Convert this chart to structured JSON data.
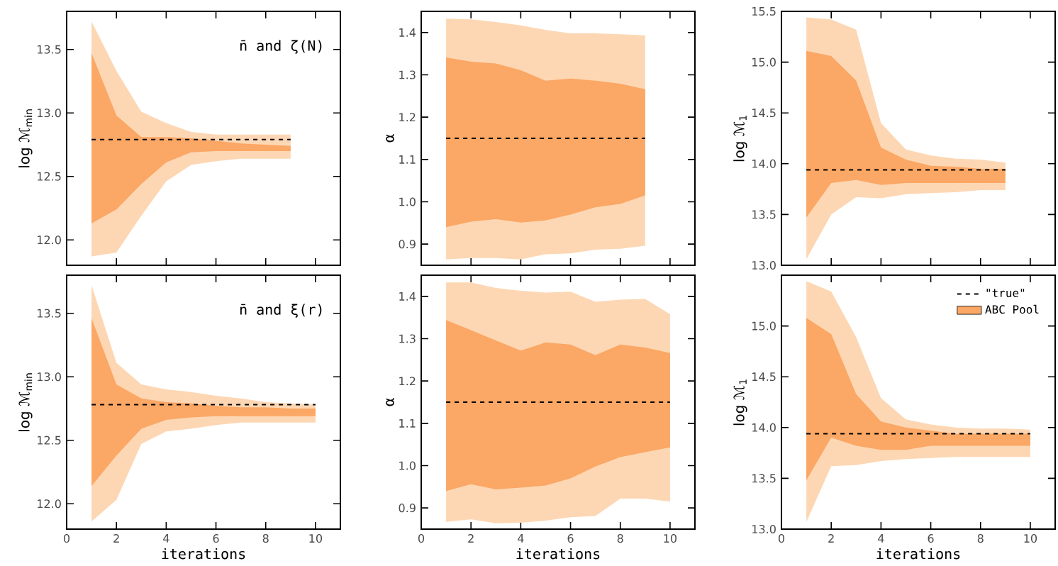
{
  "chart_data": [
    {
      "type": "line",
      "ylabel": "log ℳ$_{min}$",
      "annotations": [
        "n̄ and ζ(N)"
      ],
      "tick_labels": "y",
      "xlim": [
        0,
        11
      ],
      "xticks": [
        0,
        2,
        4,
        6,
        8,
        10
      ],
      "ylim": [
        11.8,
        13.8
      ],
      "yticks": [
        {
          "value": 12,
          "label": "12.0"
        },
        12.5,
        {
          "value": 13,
          "label": "13.0"
        },
        13.5
      ],
      "series": [
        {
          "line_style": "dashed",
          "color": "#000000",
          "x": [
            1,
            9
          ],
          "values": [
            12.79,
            12.79
          ]
        },
        {
          "color": "#fdd7b3",
          "x": [
            1,
            2,
            3,
            4,
            5,
            6,
            7,
            8,
            9
          ],
          "values": [
            null,
            null,
            null,
            null,
            null,
            null,
            null,
            null,
            null
          ],
          "upper": [
            13.72,
            13.33,
            13.01,
            12.92,
            12.85,
            12.83,
            12.83,
            12.83,
            12.83
          ],
          "lower": [
            11.87,
            11.9,
            12.19,
            12.46,
            12.59,
            12.62,
            12.64,
            12.64,
            12.64
          ]
        },
        {
          "color": "#fba765",
          "x": [
            1,
            2,
            3,
            4,
            5,
            6,
            7,
            8,
            9
          ],
          "values": [
            null,
            null,
            null,
            null,
            null,
            null,
            null,
            null,
            null
          ],
          "upper": [
            13.47,
            12.98,
            12.81,
            12.81,
            12.8,
            12.78,
            12.76,
            12.75,
            12.74
          ],
          "lower": [
            12.13,
            12.24,
            12.44,
            12.61,
            12.69,
            12.7,
            12.7,
            12.7,
            12.7
          ]
        }
      ]
    },
    {
      "type": "line",
      "ylabel": "α",
      "tick_labels": "y",
      "xlim": [
        0,
        11
      ],
      "xticks": [
        0,
        2,
        4,
        6,
        8,
        10
      ],
      "ylim": [
        0.85,
        1.45
      ],
      "yticks": [
        0.9,
        {
          "value": 1,
          "label": "1.0"
        },
        1.1,
        1.2,
        1.3,
        1.4
      ],
      "series": [
        {
          "line_style": "dashed",
          "color": "#000000",
          "x": [
            1,
            9
          ],
          "values": [
            1.15,
            1.15
          ]
        },
        {
          "color": "#fdd7b3",
          "x": [
            1,
            2,
            3,
            4,
            5,
            6,
            7,
            8,
            9
          ],
          "values": [
            null,
            null,
            null,
            null,
            null,
            null,
            null,
            null,
            null
          ],
          "upper": [
            1.433,
            1.431,
            1.425,
            1.417,
            1.406,
            1.398,
            1.398,
            1.396,
            1.393
          ],
          "lower": [
            0.864,
            0.867,
            0.867,
            0.864,
            0.876,
            0.878,
            0.887,
            0.889,
            0.896
          ]
        },
        {
          "color": "#fba765",
          "x": [
            1,
            2,
            3,
            4,
            5,
            6,
            7,
            8,
            9
          ],
          "values": [
            null,
            null,
            null,
            null,
            null,
            null,
            null,
            null,
            null
          ],
          "upper": [
            1.341,
            1.331,
            1.327,
            1.311,
            1.286,
            1.291,
            1.286,
            1.279,
            1.266
          ],
          "lower": [
            0.94,
            0.953,
            0.959,
            0.951,
            0.956,
            0.97,
            0.987,
            0.995,
            1.015
          ]
        }
      ]
    },
    {
      "type": "line",
      "ylabel": "log ℳ$_{1}$",
      "tick_labels": "y",
      "xlim": [
        0,
        11
      ],
      "xticks": [
        0,
        2,
        4,
        6,
        8,
        10
      ],
      "ylim": [
        13,
        15.5
      ],
      "yticks": [
        {
          "value": 13,
          "label": "13.0"
        },
        13.5,
        {
          "value": 14,
          "label": "14.0"
        },
        14.5,
        {
          "value": 15,
          "label": "15.0"
        },
        15.5
      ],
      "series": [
        {
          "line_style": "dashed",
          "color": "#000000",
          "x": [
            1,
            9
          ],
          "values": [
            13.94,
            13.94
          ]
        },
        {
          "color": "#fdd7b3",
          "x": [
            1,
            2,
            3,
            4,
            5,
            6,
            7,
            8,
            9
          ],
          "values": [
            null,
            null,
            null,
            null,
            null,
            null,
            null,
            null,
            null
          ],
          "upper": [
            15.44,
            15.42,
            15.32,
            14.4,
            14.14,
            14.08,
            14.05,
            14.04,
            14.01
          ],
          "lower": [
            13.06,
            13.5,
            13.67,
            13.66,
            13.7,
            13.71,
            13.72,
            13.74,
            13.74
          ]
        },
        {
          "color": "#fba765",
          "x": [
            1,
            2,
            3,
            4,
            5,
            6,
            7,
            8,
            9
          ],
          "values": [
            null,
            null,
            null,
            null,
            null,
            null,
            null,
            null,
            null
          ],
          "upper": [
            15.11,
            15.06,
            14.82,
            14.16,
            14.04,
            13.98,
            13.97,
            13.95,
            13.95
          ],
          "lower": [
            13.47,
            13.81,
            13.84,
            13.79,
            13.81,
            13.81,
            13.81,
            13.81,
            13.81
          ]
        }
      ]
    },
    {
      "type": "line",
      "xlabel": "iterations",
      "ylabel": "log ℳ$_{min}$",
      "annotations": [
        "n̄ and ξ(r)"
      ],
      "xlim": [
        0,
        11
      ],
      "xticks": [
        0,
        2,
        4,
        6,
        8,
        10
      ],
      "ylim": [
        11.8,
        13.8
      ],
      "yticks": [
        {
          "value": 12,
          "label": "12.0"
        },
        12.5,
        {
          "value": 13,
          "label": "13.0"
        },
        13.5
      ],
      "series": [
        {
          "line_style": "dashed",
          "color": "#000000",
          "x": [
            1,
            10
          ],
          "values": [
            12.78,
            12.78
          ]
        },
        {
          "color": "#fdd7b3",
          "x": [
            1,
            2,
            3,
            4,
            5,
            6,
            7,
            8,
            9,
            10
          ],
          "values": [
            null,
            null,
            null,
            null,
            null,
            null,
            null,
            null,
            null,
            null
          ],
          "upper": [
            13.72,
            13.11,
            12.94,
            12.9,
            12.88,
            12.85,
            12.83,
            12.8,
            12.79,
            12.78
          ],
          "lower": [
            11.86,
            12.03,
            12.47,
            12.57,
            12.59,
            12.62,
            12.64,
            12.64,
            12.64,
            12.64
          ]
        },
        {
          "color": "#fba765",
          "x": [
            1,
            2,
            3,
            4,
            5,
            6,
            7,
            8,
            9,
            10
          ],
          "values": [
            null,
            null,
            null,
            null,
            null,
            null,
            null,
            null,
            null,
            null
          ],
          "upper": [
            13.46,
            12.94,
            12.83,
            12.8,
            12.79,
            12.77,
            12.76,
            12.76,
            12.75,
            12.75
          ],
          "lower": [
            12.14,
            12.38,
            12.59,
            12.66,
            12.68,
            12.69,
            12.69,
            12.69,
            12.69,
            12.69
          ]
        }
      ]
    },
    {
      "type": "line",
      "xlabel": "iterations",
      "ylabel": "α",
      "xlim": [
        0,
        11
      ],
      "xticks": [
        0,
        2,
        4,
        6,
        8,
        10
      ],
      "ylim": [
        0.85,
        1.45
      ],
      "yticks": [
        0.9,
        {
          "value": 1,
          "label": "1.0"
        },
        1.1,
        1.2,
        1.3,
        1.4
      ],
      "series": [
        {
          "line_style": "dashed",
          "color": "#000000",
          "x": [
            1,
            10
          ],
          "values": [
            1.15,
            1.15
          ]
        },
        {
          "color": "#fdd7b3",
          "x": [
            1,
            2,
            3,
            4,
            5,
            6,
            7,
            8,
            9,
            10
          ],
          "values": [
            null,
            null,
            null,
            null,
            null,
            null,
            null,
            null,
            null,
            null
          ],
          "upper": [
            1.433,
            1.433,
            1.42,
            1.413,
            1.409,
            1.411,
            1.387,
            1.392,
            1.394,
            1.358
          ],
          "lower": [
            0.867,
            0.873,
            0.864,
            0.865,
            0.87,
            0.878,
            0.881,
            0.922,
            0.922,
            0.915
          ]
        },
        {
          "color": "#fba765",
          "x": [
            1,
            2,
            3,
            4,
            5,
            6,
            7,
            8,
            9,
            10
          ],
          "values": [
            null,
            null,
            null,
            null,
            null,
            null,
            null,
            null,
            null,
            null
          ],
          "upper": [
            1.344,
            1.32,
            1.296,
            1.272,
            1.291,
            1.286,
            1.261,
            1.286,
            1.279,
            1.266
          ],
          "lower": [
            0.94,
            0.956,
            0.944,
            0.948,
            0.953,
            0.97,
            0.998,
            1.02,
            1.032,
            1.043
          ]
        }
      ]
    },
    {
      "type": "line",
      "xlabel": "iterations",
      "ylabel": "log ℳ$_{1}$",
      "legend": "top right",
      "xlim": [
        0,
        11
      ],
      "xticks": [
        0,
        2,
        4,
        6,
        8,
        10
      ],
      "ylim": [
        13,
        15.5
      ],
      "yticks": [
        {
          "value": 13,
          "label": "13.0"
        },
        13.5,
        {
          "value": 14,
          "label": "14.0"
        },
        14.5,
        {
          "value": 15,
          "label": "15.0"
        }
      ],
      "series": [
        {
          "line_style": "dashed",
          "color": "#000000",
          "name": "\"true\"",
          "x": [
            1,
            10
          ],
          "values": [
            13.94,
            13.94
          ]
        },
        {
          "color": "#fdd7b3",
          "x": [
            1,
            2,
            3,
            4,
            5,
            6,
            7,
            8,
            9,
            10
          ],
          "values": [
            null,
            null,
            null,
            null,
            null,
            null,
            null,
            null,
            null,
            null
          ],
          "upper": [
            15.44,
            15.34,
            14.89,
            14.29,
            14.08,
            14.03,
            14.0,
            13.99,
            13.99,
            13.98
          ],
          "lower": [
            13.07,
            13.62,
            13.63,
            13.67,
            13.69,
            13.7,
            13.71,
            13.71,
            13.71,
            13.71
          ]
        },
        {
          "color": "#fba765",
          "name": "ABC Pool",
          "x": [
            1,
            2,
            3,
            4,
            5,
            6,
            7,
            8,
            9,
            10
          ],
          "values": [
            null,
            null,
            null,
            null,
            null,
            null,
            null,
            null,
            null,
            null
          ],
          "upper": [
            15.08,
            14.92,
            14.33,
            14.06,
            14.0,
            13.97,
            13.94,
            13.94,
            13.94,
            13.94
          ],
          "lower": [
            13.48,
            13.9,
            13.82,
            13.78,
            13.78,
            13.82,
            13.82,
            13.82,
            13.82,
            13.82
          ]
        }
      ]
    }
  ]
}
